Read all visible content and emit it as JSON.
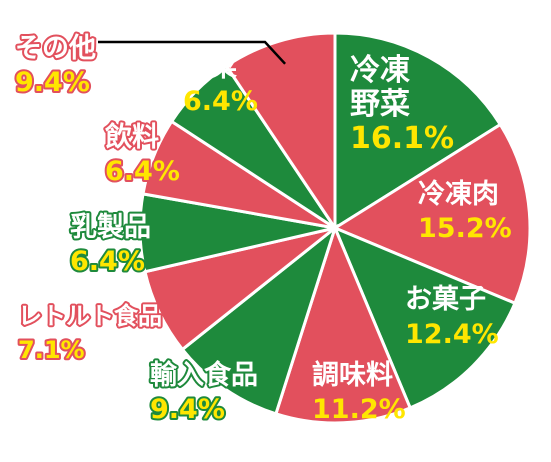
{
  "chart_data": {
    "type": "pie",
    "title": "",
    "slices": [
      {
        "name": "冷凍野菜",
        "label_lines": [
          "冷凍",
          "野菜"
        ],
        "value": 16.1,
        "value_label": "16.1%",
        "fill": "#1e8a3c",
        "name_color": "#ffffff",
        "value_color": "#ffe600",
        "halo": "none"
      },
      {
        "name": "冷凍肉",
        "label_lines": [
          "冷凍肉"
        ],
        "value": 15.2,
        "value_label": "15.2%",
        "fill": "#e2505d",
        "name_color": "#ffffff",
        "value_color": "#ffe600",
        "halo": "none"
      },
      {
        "name": "お菓子",
        "label_lines": [
          "お菓子"
        ],
        "value": 12.4,
        "value_label": "12.4%",
        "fill": "#1e8a3c",
        "name_color": "#ffffff",
        "value_color": "#ffe600",
        "halo": "none"
      },
      {
        "name": "調味料",
        "label_lines": [
          "調味料"
        ],
        "value": 11.2,
        "value_label": "11.2%",
        "fill": "#e2505d",
        "name_color": "#ffffff",
        "value_color": "#ffe600",
        "halo": "none"
      },
      {
        "name": "輸入食品",
        "label_lines": [
          "輸入食品"
        ],
        "value": 9.4,
        "value_label": "9.4%",
        "fill": "#1e8a3c",
        "name_color": "#ffffff",
        "value_color": "#ffe600",
        "halo": "#1e8a3c"
      },
      {
        "name": "レトルト食品",
        "label_lines": [
          "レトルト食品"
        ],
        "value": 7.1,
        "value_label": "7.1%",
        "fill": "#e2505d",
        "name_color": "#ffffff",
        "value_color": "#ffe600",
        "halo": "#e2505d"
      },
      {
        "name": "乳製品",
        "label_lines": [
          "乳製品"
        ],
        "value": 6.4,
        "value_label": "6.4%",
        "fill": "#1e8a3c",
        "name_color": "#ffffff",
        "value_color": "#ffe600",
        "halo": "#1e8a3c"
      },
      {
        "name": "飲料",
        "label_lines": [
          "飲料"
        ],
        "value": 6.4,
        "value_label": "6.4%",
        "fill": "#e2505d",
        "name_color": "#ffffff",
        "value_color": "#ffe600",
        "halo": "#e2505d"
      },
      {
        "name": "惣菜",
        "label_lines": [
          "惣菜"
        ],
        "value": 6.4,
        "value_label": "6.4%",
        "fill": "#1e8a3c",
        "name_color": "#ffffff",
        "value_color": "#ffe600",
        "halo": "none"
      },
      {
        "name": "その他",
        "label_lines": [
          "その他"
        ],
        "value": 9.4,
        "value_label": "9.4%",
        "fill": "#e2505d",
        "name_color": "#ffffff",
        "value_color": "#ffe600",
        "halo": "#e2505d"
      }
    ],
    "start_angle_deg": 0,
    "direction": "clockwise",
    "slice_border_color": "#ffffff",
    "leader_line_color": "#000000",
    "legend": "none"
  }
}
